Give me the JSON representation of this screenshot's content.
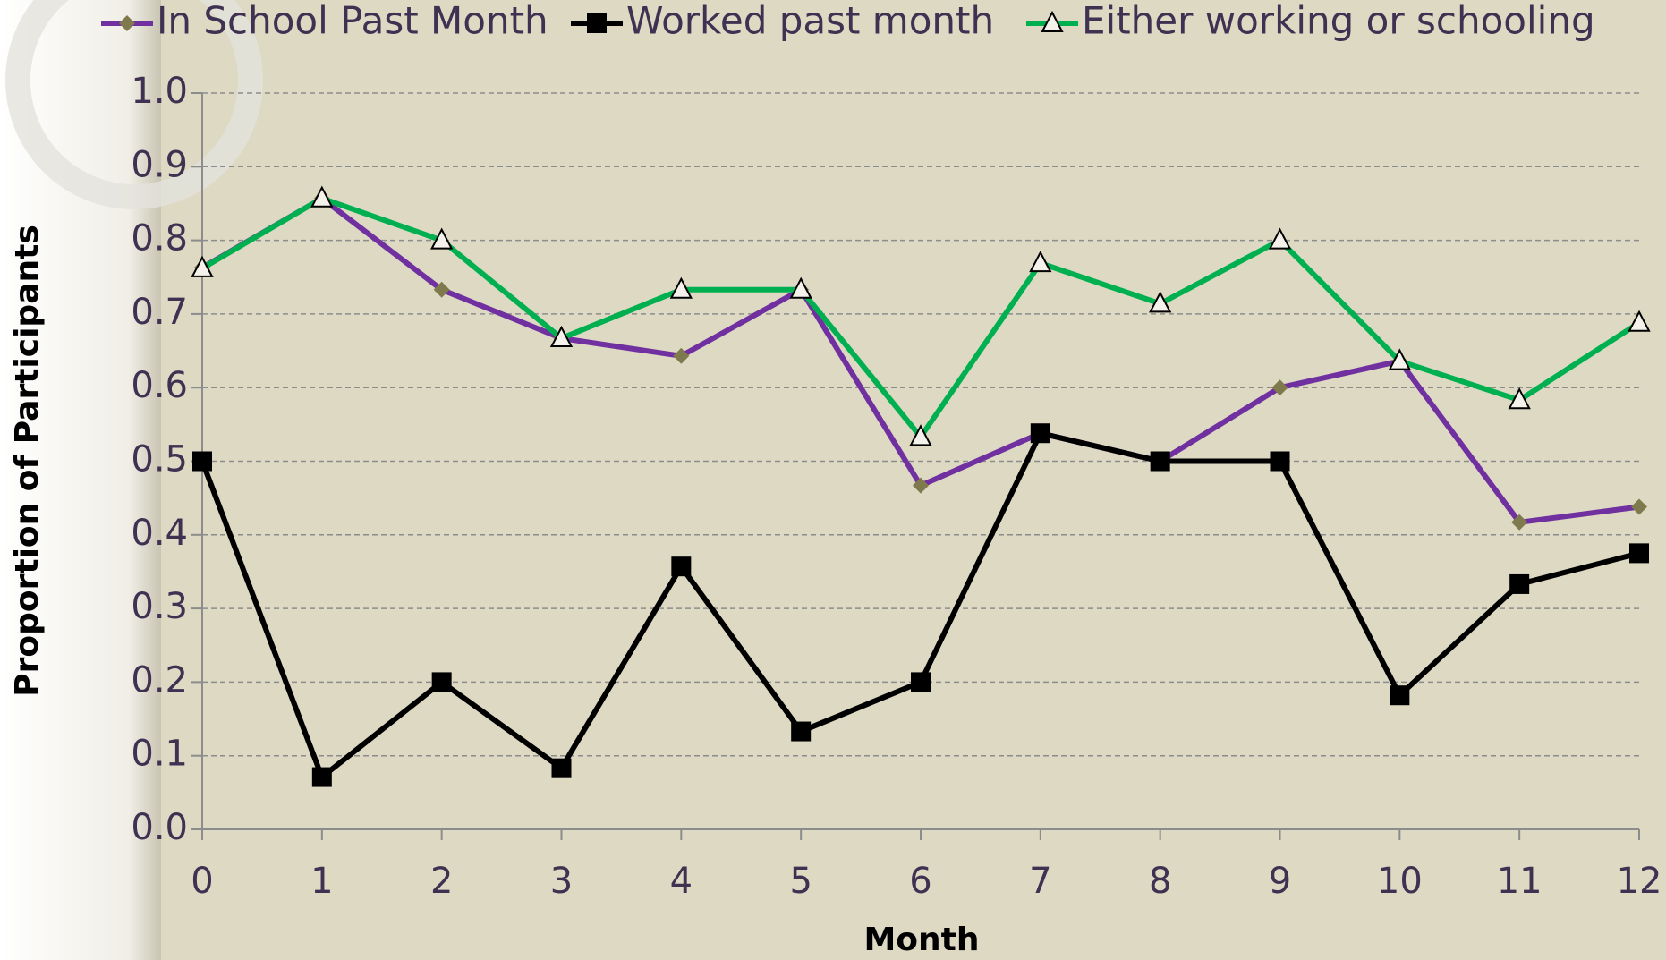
{
  "chart_data": {
    "type": "line",
    "x_label": "Month",
    "y_label": "Proportion of Participants",
    "x": [
      0,
      1,
      2,
      3,
      4,
      5,
      6,
      7,
      8,
      9,
      10,
      11,
      12
    ],
    "xlim": [
      0,
      12
    ],
    "xticks": [
      0,
      1,
      2,
      3,
      4,
      5,
      6,
      7,
      8,
      9,
      10,
      11,
      12
    ],
    "ylim": [
      0,
      1
    ],
    "yticks": [
      {
        "value": 0,
        "label": "0.0"
      },
      0.1,
      0.2,
      0.3,
      0.4,
      0.5,
      0.6,
      0.7,
      0.8,
      0.9,
      {
        "value": 1,
        "label": "1.0"
      }
    ],
    "grid": true,
    "legend": "top",
    "series": [
      {
        "name": "In School Past Month",
        "color": "#7030a0",
        "marker": "diamond",
        "marker_color": "#7f7a4e",
        "values": [
          0.763,
          0.857,
          0.733,
          0.667,
          0.643,
          0.733,
          0.467,
          0.538,
          0.5,
          0.6,
          0.636,
          0.417,
          0.438
        ]
      },
      {
        "name": "Worked past month",
        "color": "#000000",
        "marker": "square",
        "marker_color": "#000000",
        "values": [
          0.5,
          0.071,
          0.2,
          0.083,
          0.357,
          0.133,
          0.2,
          0.538,
          0.5,
          0.5,
          0.182,
          0.333,
          0.375
        ]
      },
      {
        "name": "Either working or schooling",
        "color": "#00b050",
        "marker": "triangle",
        "marker_color": "#000000",
        "values": [
          0.762,
          0.857,
          0.8,
          0.667,
          0.733,
          0.733,
          0.533,
          0.769,
          0.714,
          0.8,
          0.636,
          0.583,
          0.688
        ]
      }
    ]
  }
}
